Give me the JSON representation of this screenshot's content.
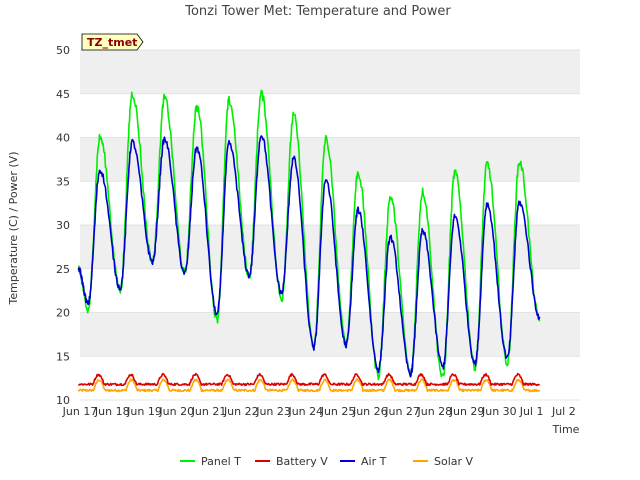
{
  "chart_data": {
    "type": "line",
    "title": "Tonzi Tower Met: Temperature and Power",
    "xlabel": "Time",
    "ylabel": "Temperature (C) / Power (V)",
    "badge": "TZ_tmet",
    "ylim": [
      10,
      50
    ],
    "yticks": [
      10,
      15,
      20,
      25,
      30,
      35,
      40,
      45,
      50
    ],
    "xlim": [
      16.0,
      31.5
    ],
    "xticks": [
      {
        "pos": 16.0,
        "label": "Jun 17"
      },
      {
        "pos": 17.0,
        "label": "Jun 18"
      },
      {
        "pos": 18.0,
        "label": "Jun 19"
      },
      {
        "pos": 19.0,
        "label": "Jun 20"
      },
      {
        "pos": 20.0,
        "label": "Jun 21"
      },
      {
        "pos": 21.0,
        "label": "Jun 22"
      },
      {
        "pos": 22.0,
        "label": "Jun 23"
      },
      {
        "pos": 23.0,
        "label": "Jun 24"
      },
      {
        "pos": 24.0,
        "label": "Jun 25"
      },
      {
        "pos": 25.0,
        "label": "Jun 26"
      },
      {
        "pos": 26.0,
        "label": "Jun 27"
      },
      {
        "pos": 27.0,
        "label": "Jun 28"
      },
      {
        "pos": 28.0,
        "label": "Jun 29"
      },
      {
        "pos": 29.0,
        "label": "Jun 30"
      },
      {
        "pos": 30.0,
        "label": "Jul 1"
      },
      {
        "pos": 31.0,
        "label": "Jul 2"
      }
    ],
    "days": [
      16,
      17,
      18,
      19,
      20,
      21,
      22,
      23,
      24,
      25,
      26,
      27,
      28,
      29,
      30
    ],
    "series": [
      {
        "name": "Panel T",
        "color": "#00ee00",
        "start": 25.0,
        "mins": [
          20.2,
          22.5,
          25.8,
          24.5,
          19.2,
          24.2,
          21.5,
          16.0,
          16.5,
          12.8,
          13.0,
          12.5,
          13.8,
          14.2
        ],
        "maxs": [
          40.0,
          45.0,
          44.5,
          43.5,
          44.2,
          45.0,
          42.5,
          39.8,
          36.0,
          33.2,
          33.8,
          36.0,
          37.0,
          37.2
        ],
        "end": 19.0
      },
      {
        "name": "Battery V",
        "color": "#dd0000",
        "base": 11.8,
        "peak": 12.9
      },
      {
        "name": "Air T",
        "color": "#0000cc",
        "start": 25.0,
        "mins": [
          21.0,
          22.8,
          25.8,
          24.5,
          19.8,
          24.2,
          22.2,
          16.0,
          16.3,
          13.5,
          13.0,
          13.8,
          14.2,
          14.8
        ],
        "maxs": [
          36.3,
          39.5,
          39.8,
          38.8,
          39.3,
          40.3,
          37.6,
          35.2,
          31.7,
          28.6,
          29.3,
          31.0,
          32.4,
          32.6
        ],
        "end": 19.5
      },
      {
        "name": "Solar V",
        "color": "#ffa500",
        "base": 11.1,
        "peak": 12.3
      }
    ],
    "legend": [
      "Panel T",
      "Battery V",
      "Air T",
      "Solar V"
    ],
    "legend_position": "bottom-center",
    "grid": true
  }
}
